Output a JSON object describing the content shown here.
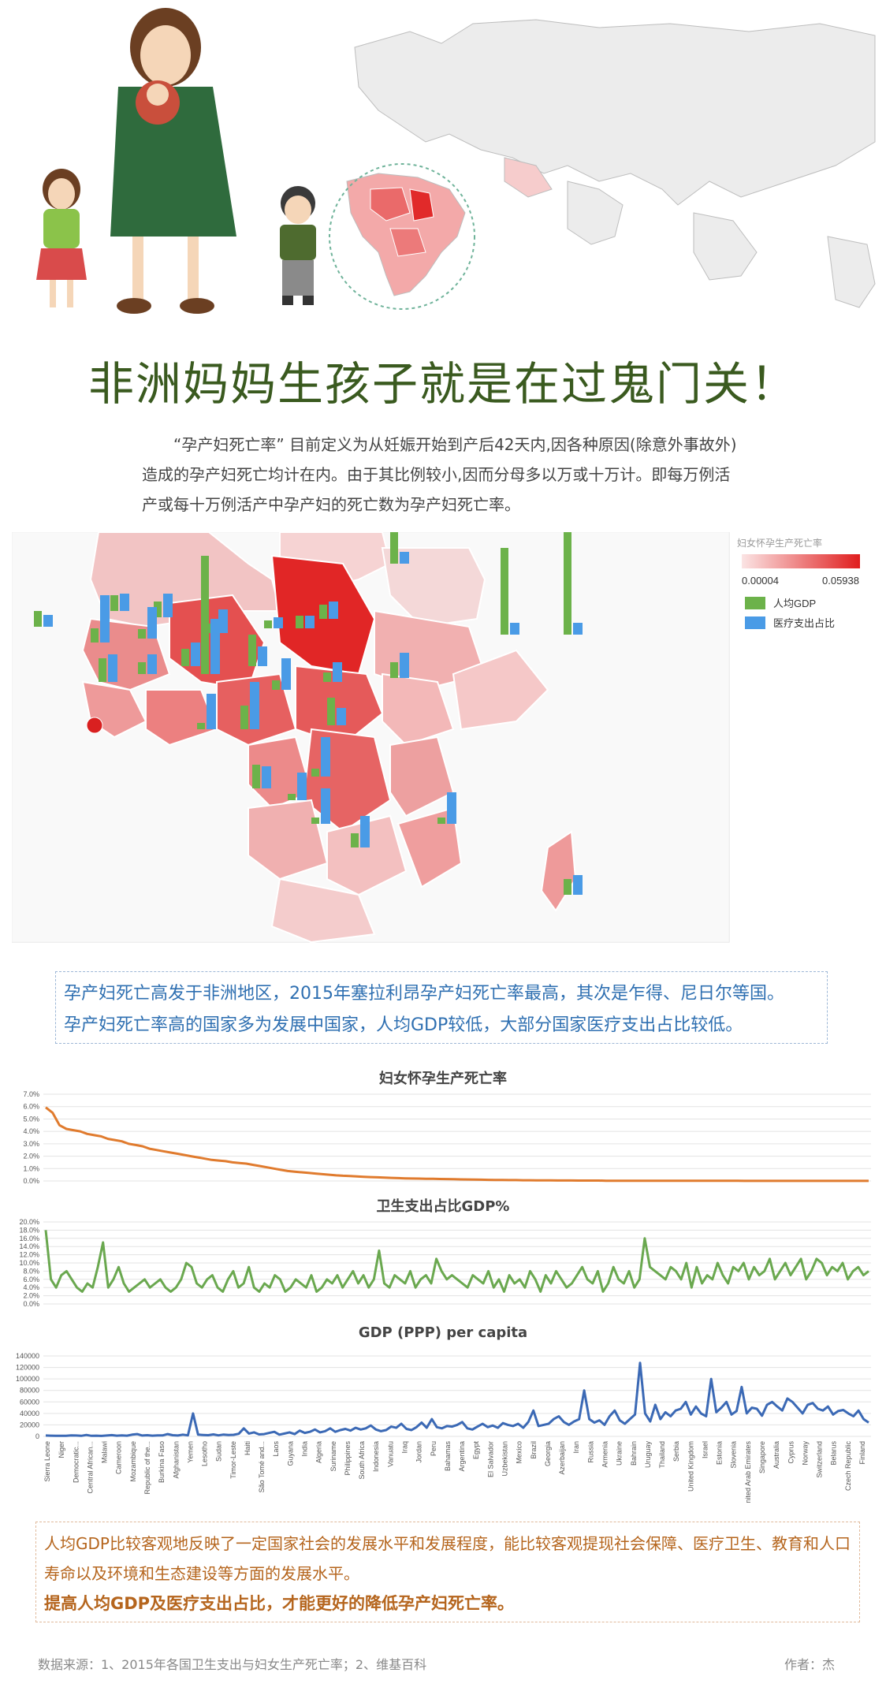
{
  "title": "非洲妈妈生孩子就是在过鬼门关！",
  "intro": "“孕产妇死亡率” 目前定义为从妊娠开始到产后42天内,因各种原因(除意外事故外)造成的孕产妇死亡均计在内。由于其比例较小,因而分母多以万或十万计。即每万例活产或每十万例活产中孕产妇的死亡数为孕产妇死亡率。",
  "map_legend": {
    "title": "妇女怀孕生产死亡率",
    "min": "0.00004",
    "max": "0.05938",
    "gdp": "人均GDP",
    "health": "医疗支出占比",
    "colors": {
      "low": "#fbe4e4",
      "high": "#e01e1e",
      "gdp": "#6cb24a",
      "health": "#4a9be6"
    }
  },
  "summary": {
    "line1": "孕产妇死亡高发于非洲地区，2015年塞拉利昂孕产妇死亡率最高，其次是乍得、尼日尔等国。",
    "line2": "孕产妇死亡率高的国家多为发展中国家，人均GDP较低，大部分国家医疗支出占比较低。"
  },
  "chart_data": [
    {
      "type": "line",
      "title": "妇女怀孕生产死亡率",
      "color": "#e07b2e",
      "yticks": [
        "7.0%",
        "6.0%",
        "5.0%",
        "4.0%",
        "3.0%",
        "2.0%",
        "1.0%",
        "0.0%"
      ],
      "ylim": [
        0,
        7
      ],
      "values": [
        5.94,
        5.5,
        4.5,
        4.2,
        4.1,
        4.0,
        3.8,
        3.7,
        3.6,
        3.4,
        3.3,
        3.2,
        3.0,
        2.9,
        2.8,
        2.6,
        2.5,
        2.4,
        2.3,
        2.2,
        2.1,
        2.0,
        1.9,
        1.8,
        1.7,
        1.65,
        1.6,
        1.5,
        1.45,
        1.4,
        1.3,
        1.2,
        1.1,
        1.0,
        0.9,
        0.8,
        0.75,
        0.7,
        0.65,
        0.6,
        0.55,
        0.5,
        0.45,
        0.42,
        0.4,
        0.37,
        0.34,
        0.31,
        0.29,
        0.27,
        0.25,
        0.23,
        0.21,
        0.2,
        0.19,
        0.18,
        0.17,
        0.16,
        0.15,
        0.14,
        0.13,
        0.12,
        0.11,
        0.1,
        0.09,
        0.08,
        0.08,
        0.07,
        0.07,
        0.06,
        0.06,
        0.05,
        0.05,
        0.05,
        0.04,
        0.04,
        0.04,
        0.03,
        0.03,
        0.03,
        0.03,
        0.02,
        0.02,
        0.02,
        0.02,
        0.02,
        0.01,
        0.01,
        0.01,
        0.01,
        0.01,
        0.01,
        0.01,
        0.01,
        0.01,
        0.01,
        0.01,
        0.01,
        0.01,
        0.01,
        0.01,
        0.005,
        0.005,
        0.005,
        0.005,
        0.005,
        0.005,
        0.005,
        0.005,
        0.005,
        0.005,
        0.005,
        0.005,
        0.005,
        0.005,
        0.005,
        0.005,
        0.005,
        0.005,
        0.005
      ]
    },
    {
      "type": "line",
      "title": "卫生支出占比GDP%",
      "color": "#6aa84f",
      "yticks": [
        "20.0%",
        "18.0%",
        "16.0%",
        "14.0%",
        "12.0%",
        "10.0%",
        "8.0%",
        "6.0%",
        "4.0%",
        "2.0%",
        "0.0%"
      ],
      "ylim": [
        0,
        20
      ],
      "values": [
        18,
        6,
        4,
        7,
        8,
        6,
        4,
        3,
        5,
        4,
        9,
        15,
        4,
        6,
        9,
        5,
        3,
        4,
        5,
        6,
        4,
        5,
        6,
        4,
        3,
        4,
        6,
        10,
        9,
        5,
        4,
        6,
        7,
        4,
        3,
        6,
        8,
        4,
        5,
        9,
        4,
        3,
        5,
        4,
        7,
        6,
        3,
        4,
        6,
        5,
        4,
        7,
        3,
        4,
        6,
        5,
        7,
        4,
        6,
        8,
        5,
        7,
        4,
        6,
        13,
        5,
        4,
        7,
        6,
        5,
        8,
        4,
        6,
        7,
        5,
        11,
        8,
        6,
        7,
        6,
        5,
        4,
        7,
        6,
        5,
        8,
        4,
        6,
        3,
        7,
        5,
        6,
        4,
        8,
        6,
        3,
        7,
        5,
        8,
        6,
        4,
        5,
        7,
        9,
        6,
        5,
        8,
        3,
        5,
        9,
        6,
        5,
        8,
        4,
        6,
        16,
        9,
        8,
        7,
        6,
        9,
        8,
        6,
        10,
        4,
        9,
        5,
        7,
        6,
        10,
        7,
        5,
        9,
        8,
        10,
        6,
        9,
        7,
        8,
        11,
        6,
        8,
        10,
        7,
        9,
        11,
        6,
        8,
        11,
        10,
        7,
        9,
        8,
        10,
        6,
        8,
        9,
        7,
        8
      ],
      "xlabels": []
    },
    {
      "type": "line",
      "title": "GDP (PPP) per capita",
      "color": "#3b69b5",
      "yticks": [
        "140000",
        "120000",
        "100000",
        "80000",
        "60000",
        "40000",
        "20000",
        "0"
      ],
      "ylim": [
        0,
        140000
      ],
      "values": [
        1500,
        1200,
        1000,
        900,
        1100,
        1800,
        1500,
        900,
        2500,
        1000,
        1200,
        800,
        1500,
        2200,
        1200,
        1800,
        1300,
        3000,
        4000,
        1500,
        2000,
        1200,
        1800,
        1600,
        4000,
        2000,
        1500,
        3000,
        1800,
        40000,
        3000,
        2500,
        2000,
        3500,
        1800,
        3200,
        2500,
        2700,
        4500,
        14000,
        5000,
        7000,
        3500,
        4000,
        6000,
        8000,
        3000,
        5000,
        7000,
        4000,
        10000,
        6000,
        8000,
        12000,
        7000,
        9000,
        14000,
        8000,
        11000,
        13000,
        10000,
        15000,
        12000,
        14000,
        19000,
        12000,
        9000,
        11000,
        17000,
        15000,
        22000,
        13000,
        11000,
        16000,
        24000,
        15000,
        30000,
        16000,
        14000,
        18000,
        17000,
        20000,
        25000,
        14000,
        12000,
        17000,
        22000,
        16000,
        19000,
        15000,
        23000,
        20000,
        18000,
        22000,
        15000,
        25000,
        45000,
        18000,
        20000,
        22000,
        30000,
        35000,
        25000,
        20000,
        26000,
        30000,
        80000,
        30000,
        24000,
        28000,
        20000,
        35000,
        45000,
        28000,
        22000,
        30000,
        38000,
        128000,
        40000,
        26000,
        55000,
        30000,
        42000,
        35000,
        45000,
        48000,
        60000,
        38000,
        52000,
        40000,
        35000,
        100000,
        42000,
        50000,
        60000,
        38000,
        44000,
        86000,
        40000,
        50000,
        48000,
        36000,
        55000,
        60000,
        52000,
        45000,
        66000,
        60000,
        50000,
        40000,
        55000,
        58000,
        48000,
        45000,
        52000,
        38000,
        44000,
        46000,
        40000,
        35000,
        45000,
        30000,
        24000
      ],
      "xlabels": [
        "Sierra Leone",
        "Niger",
        "Democratic...",
        "Central African...",
        "Malawi",
        "Cameroon",
        "Mozambique",
        "Republic of the...",
        "Burkina Faso",
        "Afghanistan",
        "Yemen",
        "Lesotho",
        "Sudan",
        "Timor-Leste",
        "Haiti",
        "São Tomé and...",
        "Laos",
        "Guyana",
        "India",
        "Algeria",
        "Suriname",
        "Philippines",
        "South Africa",
        "Indonesia",
        "Vanuatu",
        "Iraq",
        "Jordan",
        "Peru",
        "Bahamas",
        "Argentina",
        "Egypt",
        "El Salvador",
        "Uzbekistan",
        "Mexico",
        "Brazil",
        "Georgia",
        "Azerbaijan",
        "Iran",
        "Russia",
        "Armenia",
        "Ukraine",
        "Bahrain",
        "Uruguay",
        "Thailand",
        "Serbia",
        "United Kingdom",
        "Israel",
        "Estonia",
        "Slovenia",
        "nited Arab Emirates",
        "Singapore",
        "Australia",
        "Cyprus",
        "Norway",
        "Switzerland",
        "Belarus",
        "Czech Republic",
        "Finland"
      ]
    }
  ],
  "notes": {
    "line1": "人均GDP比较客观地反映了一定国家社会的发展水平和发展程度，能比较客观提现社会保障、医疗卫生、教育和人口寿命以及环境和生态建设等方面的发展水平。",
    "line2": "提高人均GDP及医疗支出占比，才能更好的降低孕产妇死亡率。"
  },
  "footer": {
    "source": "数据来源：1、2015年各国卫生支出与妇女生产死亡率；2、维基百科",
    "author": "作者：杰"
  }
}
